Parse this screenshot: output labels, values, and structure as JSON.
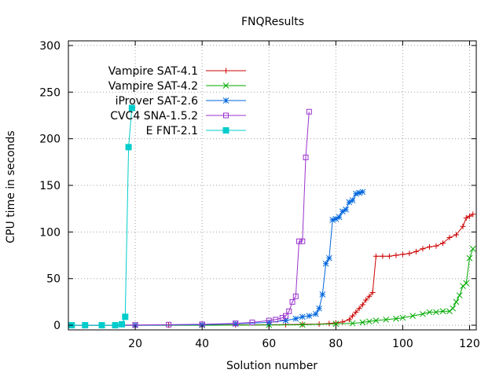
{
  "chart_data": {
    "type": "line",
    "title": "FNQResults",
    "xlabel": "Solution number",
    "ylabel": "CPU time in seconds",
    "xlim": [
      0,
      122
    ],
    "ylim": [
      -5,
      305
    ],
    "x_ticks": [
      20,
      40,
      60,
      80,
      100,
      120
    ],
    "y_ticks": [
      0,
      50,
      100,
      150,
      200,
      250,
      300
    ],
    "grid": true,
    "legend_position": "top-left",
    "series": [
      {
        "name": "Vampire SAT-4.1",
        "color": "#cc0000",
        "marker": "plus",
        "points": [
          [
            1,
            0
          ],
          [
            10,
            0
          ],
          [
            20,
            0
          ],
          [
            30,
            0.1
          ],
          [
            40,
            0.2
          ],
          [
            50,
            0.3
          ],
          [
            60,
            0.5
          ],
          [
            65,
            0.7
          ],
          [
            70,
            1
          ],
          [
            75,
            1.2
          ],
          [
            78,
            1.8
          ],
          [
            80,
            2.5
          ],
          [
            82,
            3.5
          ],
          [
            84,
            6
          ],
          [
            85,
            10
          ],
          [
            86,
            14
          ],
          [
            87,
            18
          ],
          [
            88,
            22
          ],
          [
            89,
            27
          ],
          [
            90,
            31
          ],
          [
            91,
            35
          ],
          [
            92,
            74
          ],
          [
            94,
            74
          ],
          [
            96,
            74
          ],
          [
            98,
            75
          ],
          [
            100,
            76
          ],
          [
            102,
            77
          ],
          [
            104,
            79
          ],
          [
            106,
            82
          ],
          [
            108,
            84
          ],
          [
            110,
            85
          ],
          [
            112,
            88
          ],
          [
            114,
            94
          ],
          [
            116,
            97
          ],
          [
            118,
            106
          ],
          [
            119,
            115
          ],
          [
            120,
            117
          ],
          [
            121,
            119
          ]
        ]
      },
      {
        "name": "Vampire SAT-4.2",
        "color": "#00aa00",
        "marker": "cross",
        "points": [
          [
            1,
            0
          ],
          [
            20,
            0
          ],
          [
            40,
            0
          ],
          [
            60,
            0.2
          ],
          [
            70,
            0.5
          ],
          [
            80,
            1.5
          ],
          [
            85,
            2
          ],
          [
            88,
            3
          ],
          [
            90,
            4
          ],
          [
            92,
            5
          ],
          [
            95,
            6
          ],
          [
            98,
            7
          ],
          [
            100,
            8
          ],
          [
            103,
            10
          ],
          [
            106,
            12
          ],
          [
            108,
            14
          ],
          [
            110,
            14
          ],
          [
            112,
            15
          ],
          [
            114,
            15
          ],
          [
            115,
            18
          ],
          [
            116,
            25
          ],
          [
            117,
            32
          ],
          [
            118,
            42
          ],
          [
            119,
            45
          ],
          [
            120,
            72
          ],
          [
            121,
            82
          ]
        ]
      },
      {
        "name": "iProver SAT-2.6",
        "color": "#0066dd",
        "marker": "star",
        "points": [
          [
            1,
            0
          ],
          [
            20,
            0
          ],
          [
            40,
            0.5
          ],
          [
            50,
            1.5
          ],
          [
            60,
            3
          ],
          [
            65,
            5
          ],
          [
            68,
            7
          ],
          [
            70,
            9
          ],
          [
            72,
            10
          ],
          [
            74,
            12
          ],
          [
            75,
            18
          ],
          [
            76,
            33
          ],
          [
            77,
            66
          ],
          [
            78,
            72
          ],
          [
            79,
            113
          ],
          [
            80,
            114
          ],
          [
            81,
            116
          ],
          [
            82,
            122
          ],
          [
            83,
            124
          ],
          [
            84,
            132
          ],
          [
            85,
            134
          ],
          [
            86,
            141
          ],
          [
            87,
            142
          ],
          [
            88,
            143
          ]
        ]
      },
      {
        "name": "CVC4 SNA-1.5.2",
        "color": "#9933cc",
        "marker": "box",
        "points": [
          [
            1,
            0
          ],
          [
            10,
            0
          ],
          [
            20,
            0.3
          ],
          [
            30,
            0.6
          ],
          [
            40,
            1
          ],
          [
            50,
            2
          ],
          [
            55,
            3
          ],
          [
            60,
            5
          ],
          [
            62,
            6
          ],
          [
            64,
            8
          ],
          [
            65,
            10
          ],
          [
            66,
            15
          ],
          [
            67,
            25
          ],
          [
            68,
            31
          ],
          [
            69,
            90
          ],
          [
            70,
            90
          ],
          [
            71,
            180
          ],
          [
            72,
            229
          ]
        ]
      },
      {
        "name": "E FNT-2.1",
        "color": "#00cccc",
        "marker": "filled-box",
        "points": [
          [
            1,
            0
          ],
          [
            5,
            0
          ],
          [
            10,
            0
          ],
          [
            14,
            0
          ],
          [
            16,
            1
          ],
          [
            17,
            9
          ],
          [
            18,
            191
          ],
          [
            19,
            233
          ]
        ]
      }
    ]
  }
}
